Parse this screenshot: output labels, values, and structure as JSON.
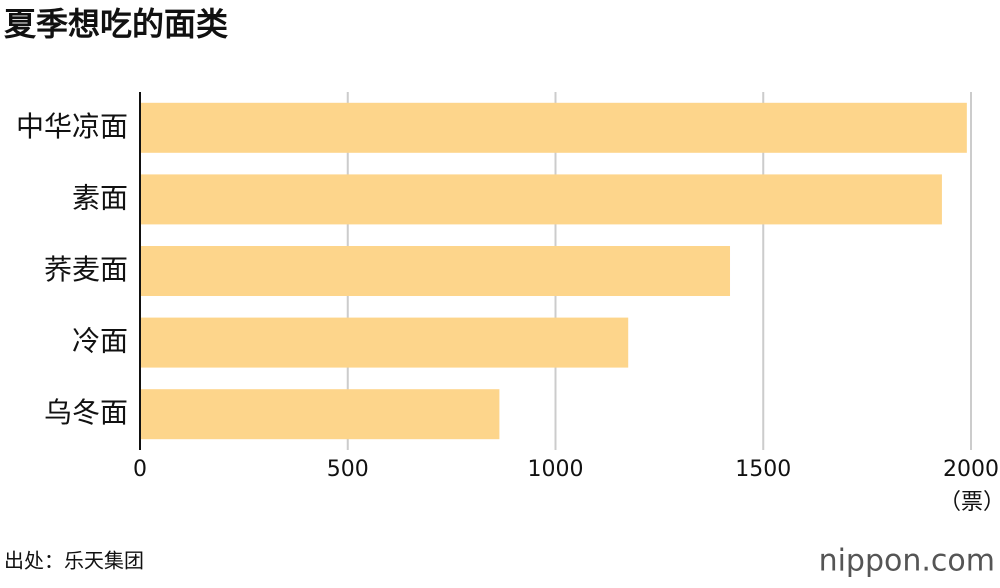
{
  "chart_data": {
    "type": "barh",
    "title": "夏季想吃的面类",
    "categories": [
      "中华凉面",
      "素面",
      "荞麦面",
      "冷面",
      "乌冬面"
    ],
    "values": [
      1990,
      1930,
      1420,
      1175,
      865
    ],
    "color": "#fdd58b",
    "xlim": [
      0,
      2000
    ],
    "xticks": [
      0,
      500,
      1000,
      1500,
      2000
    ],
    "x_label": "（票）",
    "grid": true,
    "source": "出处：乐天集团",
    "logo": "nippon.com"
  }
}
